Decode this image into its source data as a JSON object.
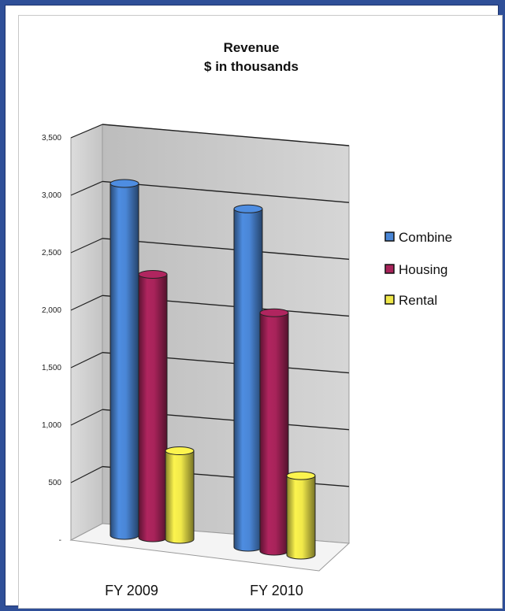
{
  "chart_data": {
    "type": "bar",
    "title": "Revenue",
    "subtitle": "$ in thousands",
    "categories": [
      "FY 2009",
      "FY 2010"
    ],
    "series": [
      {
        "name": "Combine",
        "values": [
          3100,
          2980
        ],
        "color": "#4a86d6"
      },
      {
        "name": "Housing",
        "values": [
          2320,
          2100
        ],
        "color": "#a8235a"
      },
      {
        "name": "Rental",
        "values": [
          780,
          700
        ],
        "color": "#f0e84a"
      }
    ],
    "yticks": [
      "-",
      "500",
      "1,000",
      "1,500",
      "2,000",
      "2,500",
      "3,000",
      "3,500"
    ],
    "ylim": [
      0,
      3500
    ],
    "grid": true,
    "legend_position": "right",
    "style": "3d-cylinder"
  }
}
